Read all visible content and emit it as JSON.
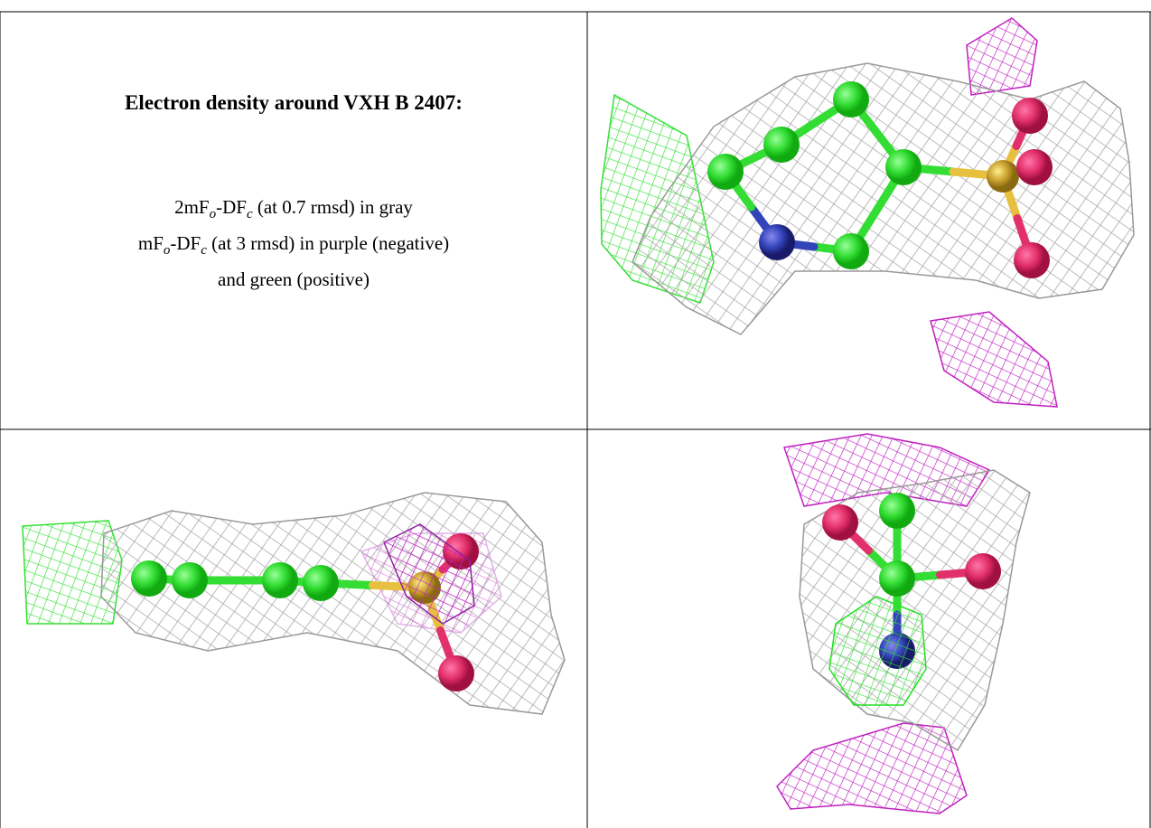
{
  "caption": {
    "title": "Electron density around VXH B 2407:",
    "lines": [
      [
        "2mF",
        "o",
        "-DF",
        "c",
        " (at 0.7 rmsd) in gray"
      ],
      [
        "mF",
        "o",
        "-DF",
        "c",
        " (at 3 rmsd) in purple (negative)"
      ],
      [
        "and green (positive)"
      ]
    ]
  }
}
